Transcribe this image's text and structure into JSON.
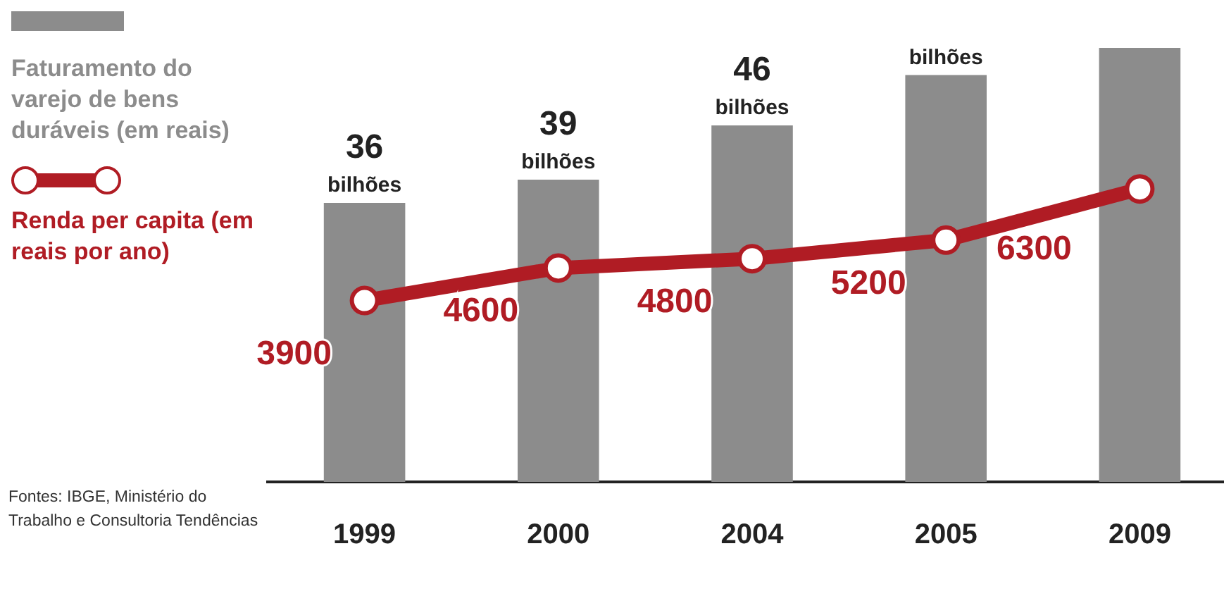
{
  "chart_data": {
    "type": "bar",
    "categories": [
      "1999",
      "2000",
      "2004",
      "2005",
      "2009"
    ],
    "series": [
      {
        "name": "Faturamento do varejo de bens duráveis (em reais)",
        "color": "#8c8c8c",
        "values": [
          36,
          39,
          46,
          52.5,
          56
        ],
        "value_labels": [
          "36 bilhões",
          "39 bilhões",
          "46 bilhões",
          "bilhões",
          null
        ]
      },
      {
        "type": "line",
        "name": "Renda per capita (em reais por ano)",
        "color": "#b01c24",
        "axis": "y2",
        "values": [
          3900,
          4600,
          4800,
          5200,
          6300
        ],
        "value_labels": [
          "3900",
          "4600",
          "4800",
          "5200",
          "6300"
        ]
      }
    ],
    "legend": "left",
    "marker": "circle",
    "grid": false,
    "annotations": [
      "Fontes: IBGE, Ministério do Trabalho e Consultoria Tendências"
    ]
  }
}
